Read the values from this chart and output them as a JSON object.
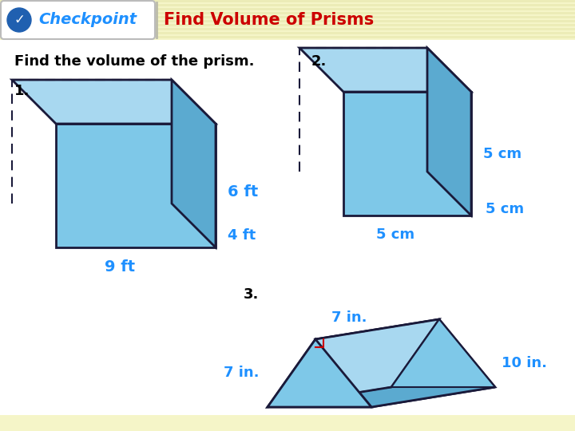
{
  "bg_color": "#FFFFFF",
  "header_bg": "#F5F5C8",
  "title_text": "Find Volume of Prisms",
  "title_color": "#CC0000",
  "checkpoint_text": "Checkpoint",
  "checkpoint_color": "#1E90FF",
  "checkpoint_circle_color": "#2060B0",
  "instruction_text": "Find the volume of the prism.",
  "label_color": "#1E90FF",
  "prism_face_color": "#7EC8E8",
  "prism_top_color": "#A8D8F0",
  "prism_side_color": "#5BAAD0",
  "prism_edge_color": "#1A1A3A",
  "header_stripe_color": "#E8E8B0",
  "footer_stripe_color": "#E8E8B0"
}
